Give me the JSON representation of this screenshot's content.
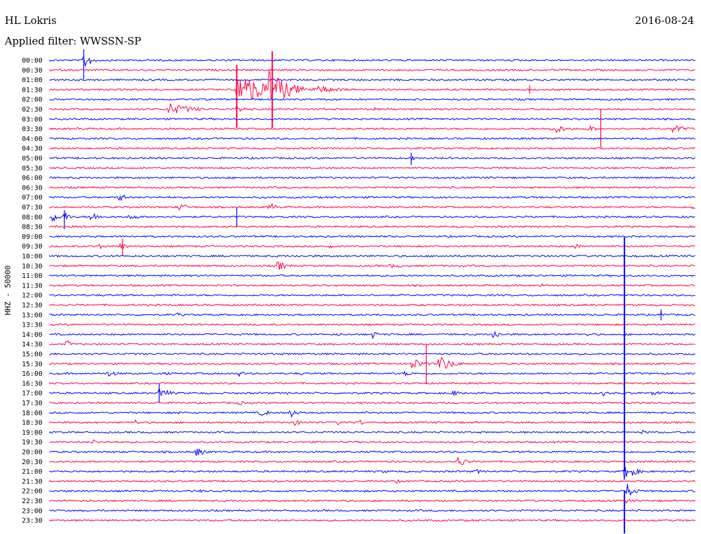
{
  "header": {
    "station": "HL Lokris",
    "date": "2016-08-24",
    "filter": "Applied filter: WWSSN-SP"
  },
  "chart_data": {
    "type": "line",
    "title": "",
    "ylabel": "HHZ - 50000",
    "row_labels": [
      "00:00",
      "00:30",
      "01:00",
      "01:30",
      "02:00",
      "02:30",
      "03:00",
      "03:30",
      "04:00",
      "04:30",
      "05:00",
      "05:30",
      "06:00",
      "06:30",
      "07:00",
      "07:30",
      "08:00",
      "08:30",
      "09:00",
      "09:30",
      "10:00",
      "10:30",
      "11:00",
      "11:30",
      "12:00",
      "12:30",
      "13:00",
      "13:30",
      "14:00",
      "14:30",
      "15:00",
      "15:30",
      "16:00",
      "16:30",
      "17:00",
      "17:30",
      "18:00",
      "18:30",
      "19:00",
      "19:30",
      "20:00",
      "20:30",
      "21:00",
      "21:30",
      "22:00",
      "22:30",
      "23:00",
      "23:30"
    ],
    "trace_colors": [
      "#0000ff",
      "#ff0040"
    ],
    "x_range_minutes": [
      0,
      30
    ],
    "events": [
      {
        "row": 0,
        "t": 1.6,
        "amp": 14,
        "dur": 1.0
      },
      {
        "row": 3,
        "t": 8.7,
        "amp": 26,
        "dur": 4.5
      },
      {
        "row": 3,
        "t": 10.2,
        "amp": 30,
        "dur": 2.5
      },
      {
        "row": 3,
        "t": 12.5,
        "amp": 6,
        "dur": 3.0
      },
      {
        "row": 5,
        "t": 5.5,
        "amp": 10,
        "dur": 3.0
      },
      {
        "row": 5,
        "t": 8.7,
        "amp": 6,
        "dur": 1.2
      },
      {
        "row": 5,
        "t": 15.0,
        "amp": 4,
        "dur": 0.8
      },
      {
        "row": 7,
        "t": 23.3,
        "amp": 9,
        "dur": 1.8
      },
      {
        "row": 7,
        "t": 25.0,
        "amp": 6,
        "dur": 1.0
      },
      {
        "row": 7,
        "t": 28.9,
        "amp": 8,
        "dur": 1.5
      },
      {
        "row": 7,
        "t": 1.2,
        "amp": 3,
        "dur": 1.5
      },
      {
        "row": 10,
        "t": 16.8,
        "amp": 5,
        "dur": 0.5
      },
      {
        "row": 14,
        "t": 3.2,
        "amp": 8,
        "dur": 1.0
      },
      {
        "row": 15,
        "t": 6.0,
        "amp": 6,
        "dur": 1.5
      },
      {
        "row": 15,
        "t": 10.2,
        "amp": 8,
        "dur": 1.0
      },
      {
        "row": 15,
        "t": 29.8,
        "amp": 6,
        "dur": 0.6
      },
      {
        "row": 16,
        "t": 0.1,
        "amp": 12,
        "dur": 0.8
      },
      {
        "row": 16,
        "t": 0.7,
        "amp": 10,
        "dur": 0.6
      },
      {
        "row": 16,
        "t": 1.9,
        "amp": 8,
        "dur": 1.2
      },
      {
        "row": 16,
        "t": 3.7,
        "amp": 5,
        "dur": 1.5
      },
      {
        "row": 19,
        "t": 2.2,
        "amp": 5,
        "dur": 1.2
      },
      {
        "row": 19,
        "t": 3.3,
        "amp": 7,
        "dur": 0.8
      },
      {
        "row": 19,
        "t": 13.0,
        "amp": 4,
        "dur": 0.7
      },
      {
        "row": 19,
        "t": 24.4,
        "amp": 5,
        "dur": 0.7
      },
      {
        "row": 21,
        "t": 10.6,
        "amp": 8,
        "dur": 1.2
      },
      {
        "row": 21,
        "t": 15.8,
        "amp": 3,
        "dur": 3.5
      },
      {
        "row": 23,
        "t": 22.8,
        "amp": 3,
        "dur": 1.5
      },
      {
        "row": 26,
        "t": 5.9,
        "amp": 4,
        "dur": 0.8
      },
      {
        "row": 26,
        "t": 28.4,
        "amp": 6,
        "dur": 0.4
      },
      {
        "row": 28,
        "t": 15.0,
        "amp": 6,
        "dur": 0.8
      },
      {
        "row": 28,
        "t": 20.6,
        "amp": 8,
        "dur": 0.9
      },
      {
        "row": 28,
        "t": 25.0,
        "amp": 4,
        "dur": 0.4
      },
      {
        "row": 28,
        "t": 13.3,
        "amp": 3,
        "dur": 1.2
      },
      {
        "row": 29,
        "t": 0.8,
        "amp": 8,
        "dur": 0.6
      },
      {
        "row": 31,
        "t": 16.8,
        "amp": 10,
        "dur": 1.5
      },
      {
        "row": 31,
        "t": 18.1,
        "amp": 14,
        "dur": 1.5
      },
      {
        "row": 32,
        "t": 2.7,
        "amp": 5,
        "dur": 1.5
      },
      {
        "row": 32,
        "t": 5.4,
        "amp": 3,
        "dur": 0.8
      },
      {
        "row": 32,
        "t": 8.8,
        "amp": 4,
        "dur": 1.5
      },
      {
        "row": 32,
        "t": 11.7,
        "amp": 3,
        "dur": 0.8
      },
      {
        "row": 32,
        "t": 16.5,
        "amp": 4,
        "dur": 1.5
      },
      {
        "row": 34,
        "t": 5.1,
        "amp": 10,
        "dur": 1.2
      },
      {
        "row": 34,
        "t": 18.7,
        "amp": 5,
        "dur": 1.2
      },
      {
        "row": 34,
        "t": 20.0,
        "amp": 3,
        "dur": 0.8
      },
      {
        "row": 34,
        "t": 25.7,
        "amp": 5,
        "dur": 0.8
      },
      {
        "row": 34,
        "t": 28.0,
        "amp": 4,
        "dur": 1.5
      },
      {
        "row": 34,
        "t": 11.0,
        "amp": 3,
        "dur": 0.7
      },
      {
        "row": 35,
        "t": 8.8,
        "amp": 4,
        "dur": 0.9
      },
      {
        "row": 35,
        "t": 17.5,
        "amp": 3,
        "dur": 1.5
      },
      {
        "row": 36,
        "t": 9.8,
        "amp": 6,
        "dur": 1.3
      },
      {
        "row": 36,
        "t": 11.2,
        "amp": 9,
        "dur": 0.8
      },
      {
        "row": 36,
        "t": 6.0,
        "amp": 3,
        "dur": 0.4
      },
      {
        "row": 37,
        "t": 4.0,
        "amp": 4,
        "dur": 1.0
      },
      {
        "row": 37,
        "t": 11.4,
        "amp": 5,
        "dur": 1.0
      },
      {
        "row": 37,
        "t": 13.4,
        "amp": 4,
        "dur": 0.9
      },
      {
        "row": 37,
        "t": 14.3,
        "amp": 6,
        "dur": 1.0
      },
      {
        "row": 38,
        "t": 27.5,
        "amp": 4,
        "dur": 0.8
      },
      {
        "row": 39,
        "t": 2.0,
        "amp": 5,
        "dur": 0.8
      },
      {
        "row": 40,
        "t": 6.8,
        "amp": 8,
        "dur": 1.1
      },
      {
        "row": 41,
        "t": 18.9,
        "amp": 10,
        "dur": 1.2
      },
      {
        "row": 41,
        "t": 15.0,
        "amp": 3,
        "dur": 0.7
      },
      {
        "row": 42,
        "t": 26.7,
        "amp": 16,
        "dur": 1.2
      },
      {
        "row": 42,
        "t": 19.8,
        "amp": 4,
        "dur": 1.0
      },
      {
        "row": 42,
        "t": 15.5,
        "amp": 3,
        "dur": 1.0
      },
      {
        "row": 43,
        "t": 16.1,
        "amp": 3,
        "dur": 1.2
      },
      {
        "row": 44,
        "t": 26.8,
        "amp": 12,
        "dur": 1.0
      },
      {
        "row": 44,
        "t": 7.0,
        "amp": 3,
        "dur": 0.6
      },
      {
        "row": 45,
        "t": 26.8,
        "amp": 5,
        "dur": 0.5
      }
    ],
    "spikes": [
      {
        "row": 0,
        "t": 1.6,
        "up": 16,
        "down": 28
      },
      {
        "row": 3,
        "t": 8.7,
        "up": 36,
        "down": 56
      },
      {
        "row": 3,
        "t": 10.35,
        "up": 56,
        "down": 56
      },
      {
        "row": 3,
        "t": 22.3,
        "up": 6,
        "down": 6
      },
      {
        "row": 7,
        "t": 25.6,
        "up": 29,
        "down": 27
      },
      {
        "row": 10,
        "t": 16.8,
        "up": 8,
        "down": 10
      },
      {
        "row": 16,
        "t": 0.7,
        "up": 10,
        "down": 18
      },
      {
        "row": 16,
        "t": 8.7,
        "up": 14,
        "down": 14
      },
      {
        "row": 19,
        "t": 3.4,
        "up": 11,
        "down": 13
      },
      {
        "row": 31,
        "t": 17.5,
        "up": 28,
        "down": 30
      },
      {
        "row": 34,
        "t": 5.1,
        "up": 14,
        "down": 14
      },
      {
        "row": 42,
        "t": 26.7,
        "up": 342,
        "down": 0
      },
      {
        "row": 44,
        "t": 26.7,
        "up": 0,
        "down": 62
      },
      {
        "row": 26,
        "t": 28.4,
        "up": 8,
        "down": 8
      }
    ]
  }
}
